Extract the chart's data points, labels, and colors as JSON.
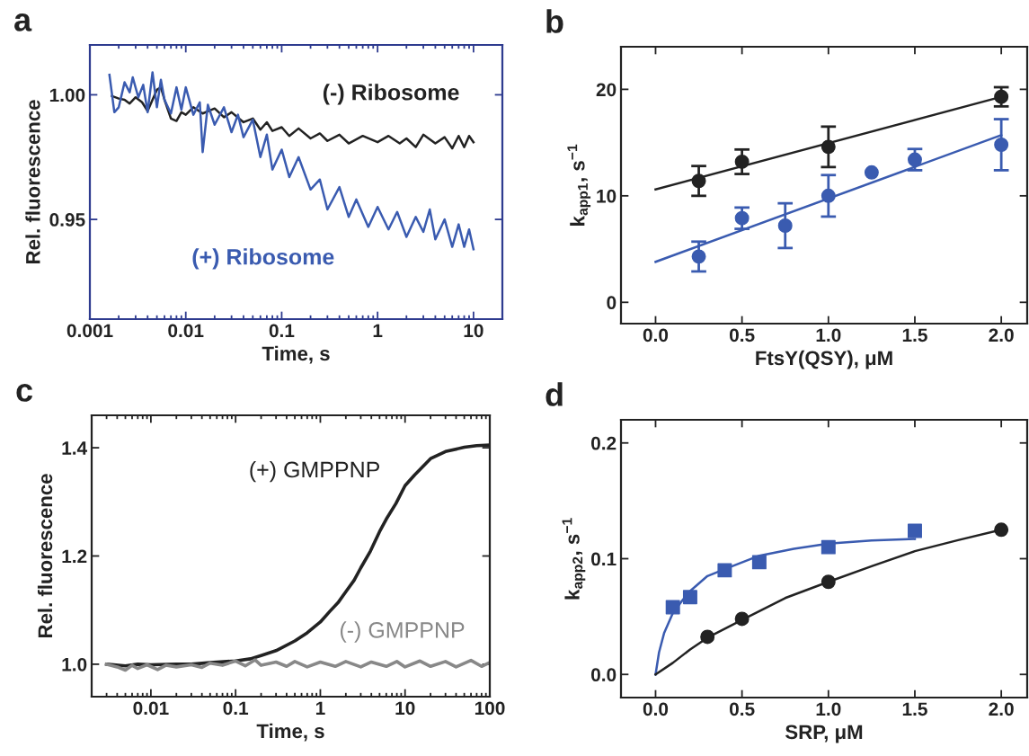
{
  "chart_data": [
    {
      "type": "line",
      "title": "a",
      "xlabel": "Time, s",
      "ylabel": "Rel. fluorescence",
      "log": "x",
      "xlim": [
        0.001,
        20
      ],
      "xticks": [
        0.001,
        0.01,
        0.1,
        1,
        10
      ],
      "ylim": [
        0.91,
        1.02
      ],
      "yticks": [
        {
          "value": 0.95,
          "label": "0.95"
        },
        {
          "value": 1.0,
          "label": "1.00"
        }
      ],
      "grid": false,
      "legend": false,
      "series": [
        {
          "name": "(-) Ribosome",
          "color": "#222222",
          "x": [
            0.0017,
            0.002,
            0.0023,
            0.0026,
            0.003,
            0.0035,
            0.004,
            0.0045,
            0.005,
            0.0055,
            0.006,
            0.007,
            0.008,
            0.009,
            0.01,
            0.012,
            0.015,
            0.02,
            0.025,
            0.03,
            0.04,
            0.05,
            0.06,
            0.07,
            0.08,
            0.1,
            0.12,
            0.15,
            0.2,
            0.25,
            0.3,
            0.4,
            0.5,
            0.7,
            1,
            1.3,
            1.7,
            2,
            2.5,
            3,
            4,
            5,
            6,
            7,
            8,
            9,
            10
          ],
          "values": [
            0.9995,
            0.9985,
            0.998,
            0.9965,
            0.999,
            0.997,
            0.9935,
            0.998,
            1.002,
            1.003,
            0.998,
            0.9905,
            0.9895,
            0.993,
            0.992,
            0.995,
            0.9925,
            0.9945,
            0.991,
            0.993,
            0.989,
            0.9905,
            0.986,
            0.989,
            0.9855,
            0.987,
            0.9835,
            0.9865,
            0.9825,
            0.9845,
            0.9815,
            0.984,
            0.9805,
            0.9835,
            0.981,
            0.9835,
            0.9805,
            0.9825,
            0.979,
            0.984,
            0.9805,
            0.983,
            0.9785,
            0.9835,
            0.979,
            0.9835,
            0.981
          ]
        },
        {
          "name": "(+) Ribosome",
          "color": "#3a5bb0",
          "x": [
            0.0016,
            0.0018,
            0.002,
            0.0023,
            0.0026,
            0.0028,
            0.0032,
            0.0036,
            0.004,
            0.0045,
            0.005,
            0.0055,
            0.006,
            0.007,
            0.008,
            0.009,
            0.01,
            0.012,
            0.014,
            0.015,
            0.017,
            0.02,
            0.025,
            0.03,
            0.035,
            0.04,
            0.05,
            0.06,
            0.07,
            0.08,
            0.1,
            0.12,
            0.15,
            0.2,
            0.25,
            0.3,
            0.4,
            0.5,
            0.6,
            0.8,
            1,
            1.3,
            1.6,
            2,
            2.5,
            3,
            3.5,
            4,
            5,
            6,
            7,
            8,
            9,
            10
          ],
          "values": [
            1.008,
            0.993,
            0.995,
            1.005,
            1.001,
            1.007,
            0.999,
            1.004,
            0.993,
            1.009,
            0.995,
            1.006,
            0.998,
            0.9925,
            1.003,
            0.994,
            1.003,
            0.992,
            0.997,
            0.977,
            0.996,
            0.988,
            0.995,
            0.985,
            0.992,
            0.983,
            0.99,
            0.975,
            0.984,
            0.97,
            0.978,
            0.967,
            0.975,
            0.962,
            0.966,
            0.954,
            0.963,
            0.951,
            0.958,
            0.947,
            0.955,
            0.946,
            0.953,
            0.943,
            0.951,
            0.945,
            0.954,
            0.942,
            0.95,
            0.939,
            0.948,
            0.939,
            0.946,
            0.938
          ]
        }
      ]
    },
    {
      "type": "scatter",
      "title": "b",
      "xlabel": "FtsY(QSY), μM",
      "ylabel": "k$_{app1}$, s$^{−1}$",
      "xlim": [
        -0.2,
        2.15
      ],
      "xticks": [
        {
          "value": 0,
          "label": "0.0"
        },
        0.5,
        {
          "value": 1,
          "label": "1.0"
        },
        1.5,
        {
          "value": 2,
          "label": "2.0"
        }
      ],
      "ylim": [
        -2,
        24
      ],
      "yticks": [
        0,
        10,
        20
      ],
      "grid": false,
      "legend": false,
      "series": [
        {
          "color": "#222222",
          "marker": "circle",
          "x": [
            0.25,
            0.5,
            1.0,
            2.0
          ],
          "values": [
            11.4,
            13.2,
            14.6,
            19.3
          ],
          "errors": [
            1.4,
            1.15,
            1.9,
            0.9
          ]
        },
        {
          "type": "line",
          "color": "#222222",
          "x": [
            0,
            2
          ],
          "values": [
            10.6,
            19.3
          ]
        },
        {
          "color": "#3a5bb0",
          "marker": "circle",
          "x": [
            0.25,
            0.5,
            0.75,
            1.0,
            1.25,
            1.5,
            2.0
          ],
          "values": [
            4.3,
            7.9,
            7.2,
            10.0,
            12.2,
            13.4,
            14.8
          ],
          "errors": [
            1.4,
            1.0,
            2.1,
            1.95,
            null,
            1.0,
            2.4
          ]
        },
        {
          "type": "line",
          "color": "#3a5bb0",
          "x": [
            0,
            2
          ],
          "values": [
            3.8,
            15.7
          ]
        }
      ]
    },
    {
      "type": "line",
      "title": "c",
      "xlabel": "Time, s",
      "ylabel": "Rel. fluorescence",
      "log": "x",
      "xlim": [
        0.002,
        100
      ],
      "xticks": [
        0.01,
        0.1,
        1,
        10,
        100
      ],
      "ylim": [
        0.94,
        1.46
      ],
      "yticks": [
        {
          "value": 1.0,
          "label": "1.0"
        },
        1.2,
        1.4
      ],
      "grid": false,
      "legend": false,
      "series": [
        {
          "name": "(+) GMPPNP",
          "color": "#222222",
          "x": [
            0.003,
            0.005,
            0.007,
            0.01,
            0.02,
            0.03,
            0.05,
            0.1,
            0.15,
            0.2,
            0.3,
            0.5,
            0.7,
            1,
            1.3,
            1.64,
            2,
            2.5,
            3,
            3.9,
            5,
            6,
            7.8,
            10,
            13,
            20,
            30,
            50,
            70,
            100
          ],
          "values": [
            1.0,
            0.997,
            1.0,
            0.999,
            1.0,
            1.0,
            1.003,
            1.006,
            1.01,
            1.016,
            1.025,
            1.043,
            1.058,
            1.078,
            1.098,
            1.115,
            1.134,
            1.155,
            1.178,
            1.209,
            1.245,
            1.268,
            1.297,
            1.33,
            1.35,
            1.38,
            1.393,
            1.401,
            1.404,
            1.405
          ]
        },
        {
          "name": "(-) GMPPNP",
          "color": "#888888",
          "x": [
            0.003,
            0.004,
            0.005,
            0.006,
            0.007,
            0.009,
            0.012,
            0.015,
            0.02,
            0.03,
            0.04,
            0.05,
            0.07,
            0.1,
            0.13,
            0.17,
            0.2,
            0.3,
            0.4,
            0.5,
            0.7,
            1,
            1.5,
            2,
            3,
            4,
            6,
            8,
            10,
            15,
            20,
            30,
            40,
            60,
            80,
            100
          ],
          "values": [
            1.0,
            0.995,
            0.989,
            0.998,
            0.992,
            0.999,
            0.99,
            0.998,
            0.995,
            0.999,
            0.994,
            1.002,
            0.998,
            1.006,
            0.997,
            1.008,
            0.998,
            1.004,
            0.996,
            1.005,
            0.995,
            1.004,
            0.996,
            1.005,
            0.995,
            1.004,
            0.996,
            1.005,
            0.995,
            1.006,
            0.996,
            1.005,
            0.995,
            1.007,
            0.996,
            1.003
          ]
        }
      ]
    },
    {
      "type": "scatter",
      "title": "d",
      "xlabel": "SRP, μM",
      "ylabel": "k$_{app2}$, s$^{−1}$",
      "xlim": [
        -0.2,
        2.15
      ],
      "xticks": [
        {
          "value": 0,
          "label": "0.0"
        },
        0.5,
        {
          "value": 1,
          "label": "1.0"
        },
        1.5,
        {
          "value": 2,
          "label": "2.0"
        }
      ],
      "ylim": [
        -0.02,
        0.22
      ],
      "yticks": [
        {
          "value": 0,
          "label": "0.0"
        },
        0.1,
        0.2
      ],
      "grid": false,
      "legend": false,
      "series": [
        {
          "color": "#3a5bb0",
          "marker": "square",
          "x": [
            0.1,
            0.2,
            0.4,
            0.6,
            1.0,
            1.5
          ],
          "values": [
            0.058,
            0.0668,
            0.09,
            0.097,
            0.11,
            0.124
          ]
        },
        {
          "type": "line",
          "color": "#3a5bb0",
          "x": [
            0,
            0.02,
            0.05,
            0.1,
            0.15,
            0.2,
            0.3,
            0.4,
            0.6,
            0.8,
            1.0,
            1.25,
            1.5
          ],
          "values": [
            0,
            0.019,
            0.036,
            0.053,
            0.063,
            0.072,
            0.085,
            0.091,
            0.1026,
            0.1085,
            0.113,
            0.1157,
            0.117
          ]
        },
        {
          "color": "#222222",
          "marker": "circle",
          "x": [
            0.3,
            0.5,
            1.0,
            2.0
          ],
          "values": [
            0.0325,
            0.048,
            0.08,
            0.125
          ]
        },
        {
          "type": "line",
          "color": "#222222",
          "x": [
            0,
            0.1,
            0.2,
            0.3,
            0.5,
            0.75,
            1.0,
            1.25,
            1.5,
            1.75,
            2.0
          ],
          "values": [
            0,
            0.01,
            0.0216,
            0.0317,
            0.047,
            0.066,
            0.08,
            0.0935,
            0.1065,
            0.116,
            0.125
          ]
        }
      ]
    }
  ]
}
